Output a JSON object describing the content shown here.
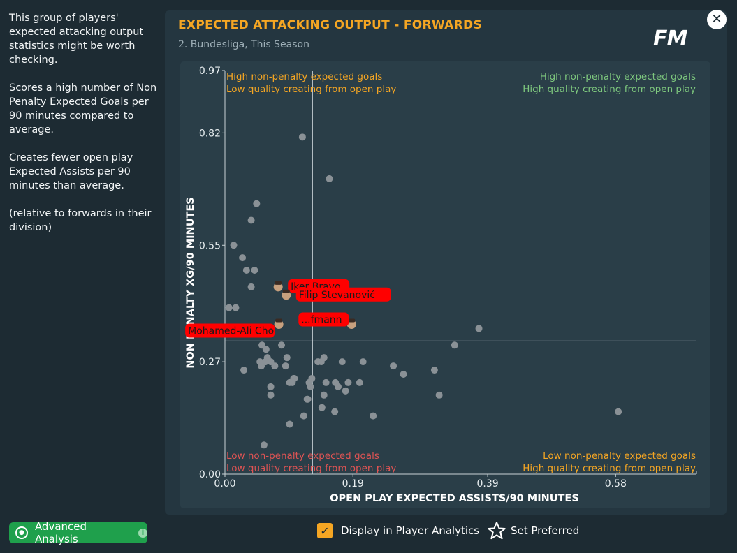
{
  "sidebar": {
    "paragraphs": [
      "This group of players' expected attacking output statistics might be worth checking.",
      "Scores a high number of Non Penalty Expected Goals per 90 minutes compared to average.",
      "Creates fewer open play Expected Assists per 90 minutes than average.",
      "(relative to forwards in their division)"
    ]
  },
  "header": {
    "title": "EXPECTED ATTACKING OUTPUT - FORWARDS",
    "subtitle": "2. Bundesliga, This Season",
    "logo_text": "FM"
  },
  "icons": {
    "close": "close-icon",
    "logo": "fm-logo",
    "advanced": "target-icon",
    "info": "info-icon",
    "check": "check-icon",
    "star": "star-icon"
  },
  "colors": {
    "accent": "#f5a623",
    "green": "#1fa04c",
    "quadrant_green": "#7ec87e",
    "quadrant_red": "#e05454",
    "highlight": "#ff0000",
    "point": "#8a9196"
  },
  "chart_data": {
    "type": "scatter",
    "title": "EXPECTED ATTACKING OUTPUT - FORWARDS",
    "subtitle": "2. Bundesliga, This Season",
    "xlabel": "OPEN PLAY EXPECTED ASSISTS/90 MINUTES",
    "ylabel": "NON PENALTY XG/90 MINUTES",
    "xlim": [
      0,
      0.7
    ],
    "ylim": [
      0,
      0.97
    ],
    "xticks": [
      0.0,
      0.19,
      0.39,
      0.58
    ],
    "xtick_labels": [
      "0.00",
      "0.19",
      "0.39",
      "0.58"
    ],
    "yticks": [
      0.0,
      0.27,
      0.55,
      0.82,
      0.97
    ],
    "ytick_labels": [
      "0.00",
      "0.27",
      "0.55",
      "0.82",
      "0.97"
    ],
    "avg_x": 0.13,
    "avg_y": 0.32,
    "quadrants": {
      "top_left": [
        "High non-penalty expected goals",
        "Low quality creating from open play"
      ],
      "top_right": [
        "High non-penalty expected goals",
        "High quality creating from open play"
      ],
      "bottom_left": [
        "Low non-penalty expected goals",
        "Low quality creating from open play"
      ],
      "bottom_right": [
        "Low non-penalty expected goals",
        "High quality creating from open play"
      ]
    },
    "points": [
      [
        0.115,
        0.81
      ],
      [
        0.155,
        0.71
      ],
      [
        0.047,
        0.65
      ],
      [
        0.039,
        0.61
      ],
      [
        0.013,
        0.55
      ],
      [
        0.026,
        0.52
      ],
      [
        0.032,
        0.49
      ],
      [
        0.044,
        0.49
      ],
      [
        0.039,
        0.45
      ],
      [
        0.006,
        0.4
      ],
      [
        0.016,
        0.4
      ],
      [
        0.377,
        0.35
      ],
      [
        0.341,
        0.31
      ],
      [
        0.055,
        0.31
      ],
      [
        0.084,
        0.31
      ],
      [
        0.063,
        0.28
      ],
      [
        0.061,
        0.3
      ],
      [
        0.052,
        0.27
      ],
      [
        0.06,
        0.27
      ],
      [
        0.068,
        0.27
      ],
      [
        0.092,
        0.28
      ],
      [
        0.028,
        0.25
      ],
      [
        0.054,
        0.26
      ],
      [
        0.074,
        0.26
      ],
      [
        0.09,
        0.26
      ],
      [
        0.138,
        0.27
      ],
      [
        0.143,
        0.27
      ],
      [
        0.147,
        0.28
      ],
      [
        0.174,
        0.27
      ],
      [
        0.205,
        0.27
      ],
      [
        0.103,
        0.23
      ],
      [
        0.1,
        0.22
      ],
      [
        0.125,
        0.22
      ],
      [
        0.129,
        0.23
      ],
      [
        0.102,
        0.23
      ],
      [
        0.15,
        0.22
      ],
      [
        0.164,
        0.22
      ],
      [
        0.183,
        0.22
      ],
      [
        0.2,
        0.22
      ],
      [
        0.068,
        0.21
      ],
      [
        0.096,
        0.22
      ],
      [
        0.127,
        0.21
      ],
      [
        0.147,
        0.19
      ],
      [
        0.168,
        0.21
      ],
      [
        0.179,
        0.2
      ],
      [
        0.25,
        0.26
      ],
      [
        0.265,
        0.24
      ],
      [
        0.311,
        0.25
      ],
      [
        0.318,
        0.19
      ],
      [
        0.068,
        0.19
      ],
      [
        0.122,
        0.18
      ],
      [
        0.123,
        0.18
      ],
      [
        0.144,
        0.16
      ],
      [
        0.163,
        0.15
      ],
      [
        0.117,
        0.14
      ],
      [
        0.096,
        0.12
      ],
      [
        0.22,
        0.14
      ],
      [
        0.584,
        0.15
      ],
      [
        0.058,
        0.07
      ]
    ],
    "highlighted": [
      {
        "name": "Iker Bravo",
        "x": 0.079,
        "y": 0.45
      },
      {
        "name": "Filip Stevanović",
        "x": 0.091,
        "y": 0.43
      },
      {
        "name": "Mohamed-Ali Cho",
        "x": 0.08,
        "y": 0.36
      },
      {
        "name": "...fmann",
        "x": 0.188,
        "y": 0.36
      }
    ]
  },
  "footer": {
    "advanced_label": "Advanced Analysis",
    "display_label": "Display in Player Analytics",
    "preferred_label": "Set Preferred"
  }
}
